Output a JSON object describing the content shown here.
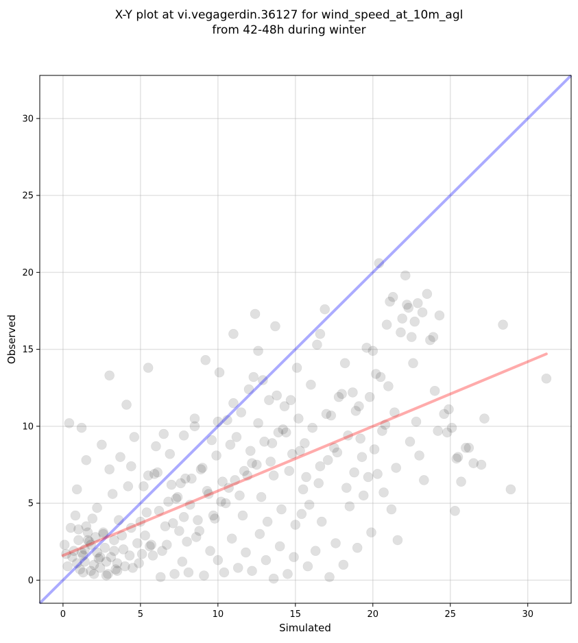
{
  "chart_data": {
    "type": "scatter",
    "title_lines": [
      "X-Y plot at vi.vegagerdin.36127 for wind_speed_at_10m_agl",
      "from 42-48h during winter"
    ],
    "xlabel": "Simulated",
    "ylabel": "Observed",
    "xlim": [
      -1.5,
      32.8
    ],
    "ylim": [
      -1.5,
      32.8
    ],
    "xticks": [
      0,
      5,
      10,
      15,
      20,
      25,
      30
    ],
    "yticks": [
      0,
      5,
      10,
      15,
      20,
      25,
      30
    ],
    "grid": true,
    "colors": {
      "points": "#000000",
      "identity_line": "#0000ff",
      "fit_line": "#ff0000"
    },
    "identity_line": {
      "x": [
        -1.5,
        32.8
      ],
      "y": [
        -1.5,
        32.8
      ]
    },
    "fit_line": {
      "x": [
        0,
        31.2
      ],
      "y": [
        1.6,
        14.7
      ]
    },
    "points": {
      "x": [
        1.1,
        1.4,
        1.3,
        2.0,
        2.4,
        3.1,
        2.7,
        1.8,
        2.2,
        3.5,
        4.0,
        1.0,
        0.8,
        1.6,
        2.9,
        3.8,
        4.3,
        5.0,
        5.6,
        6.2,
        5.9,
        6.8,
        7.1,
        7.6,
        8.2,
        8.9,
        9.4,
        9.9,
        10.3,
        10.8,
        11.2,
        11.7,
        12.1,
        12.6,
        13.0,
        13.4,
        13.9,
        14.3,
        14.8,
        15.2,
        15.7,
        16.1,
        16.6,
        17.0,
        17.5,
        18.0,
        18.4,
        18.9,
        19.3,
        19.8,
        20.2,
        20.6,
        21.0,
        21.4,
        21.9,
        22.3,
        22.7,
        23.2,
        23.7,
        24.0,
        24.6,
        25.1,
        25.4,
        26.0,
        26.5,
        27.2,
        27.0,
        28.4,
        28.9,
        31.2,
        0.1,
        0.4,
        0.6,
        0.3,
        0.5,
        0.9,
        1.2,
        1.5,
        1.9,
        2.5,
        3.0,
        3.3,
        3.7,
        4.1,
        4.6,
        5.2,
        5.5,
        6.0,
        6.5,
        7.0,
        7.4,
        7.9,
        8.5,
        9.0,
        9.6,
        10.1,
        10.6,
        11.0,
        11.5,
        12.0,
        12.4,
        12.9,
        13.3,
        13.8,
        14.2,
        14.7,
        15.1,
        15.6,
        16.0,
        16.4,
        16.9,
        17.3,
        17.8,
        18.2,
        18.7,
        19.1,
        19.6,
        20.0,
        20.5,
        20.9,
        21.3,
        21.8,
        22.2,
        22.6,
        23.0,
        23.5,
        23.9,
        24.3,
        24.8,
        25.3,
        25.7,
        26.2,
        22.1,
        22.5,
        22.9,
        21.6,
        21.2,
        20.7,
        20.3,
        19.9,
        19.4,
        19.0,
        18.5,
        18.1,
        17.6,
        17.2,
        16.7,
        16.3,
        15.8,
        15.4,
        14.9,
        14.5,
        14.0,
        13.6,
        13.1,
        12.7,
        12.2,
        11.8,
        11.3,
        10.9,
        10.4,
        10.0,
        9.5,
        9.1,
        8.6,
        8.1,
        7.7,
        7.2,
        6.7,
        6.3,
        5.8,
        5.3,
        4.9,
        4.4,
        3.9,
        3.4,
        2.8,
        2.3,
        1.7,
        1.3,
        0.7,
        0.2,
        3.0,
        4.4,
        5.5,
        9.2,
        11.0,
        12.3,
        12.6,
        13.7,
        16.6,
        10.0,
        8.5,
        7.8,
        6.9,
        2.2,
        2.6,
        3.2,
        3.6,
        4.2,
        4.8,
        5.4,
        6.1,
        6.6,
        7.3,
        7.8,
        8.3,
        8.8,
        9.3,
        9.8,
        10.5,
        11.1,
        11.6,
        12.2,
        12.8,
        13.2,
        13.6,
        14.1,
        14.6,
        15.0,
        15.5,
        15.9,
        16.5,
        17.1,
        17.7,
        18.3,
        18.8,
        19.2,
        19.7,
        20.1,
        20.8,
        21.5,
        22.4,
        23.3,
        24.2,
        24.9,
        25.5,
        20.4,
        21.1,
        22.8,
        1.0,
        1.5,
        2.1,
        2.6,
        3.3,
        1.2,
        1.8,
        2.4,
        2.0,
        1.6,
        0.9,
        1.4,
        2.8,
        3.5,
        4.5,
        5.1,
        5.7,
        6.4,
        7.5,
        8.0,
        8.7,
        9.7,
        10.2,
        10.7,
        11.4,
        11.9,
        12.5,
        13.5,
        14.4,
        15.3
      ],
      "y": [
        0.7,
        1.2,
        0.5,
        1.0,
        0.8,
        1.5,
        2.1,
        0.6,
        1.8,
        1.1,
        0.9,
        3.3,
        4.2,
        2.6,
        0.4,
        2.9,
        1.6,
        3.8,
        2.2,
        4.5,
        6.9,
        5.1,
        3.7,
        6.3,
        4.9,
        7.2,
        5.6,
        8.1,
        6.4,
        8.8,
        9.3,
        7.1,
        8.4,
        10.2,
        9.0,
        7.7,
        9.6,
        11.3,
        8.2,
        10.5,
        6.7,
        9.9,
        7.4,
        10.8,
        8.6,
        12.1,
        9.4,
        11.0,
        8.0,
        11.9,
        13.4,
        9.7,
        12.6,
        10.9,
        17.0,
        17.7,
        16.8,
        17.4,
        15.6,
        12.3,
        10.8,
        9.9,
        7.9,
        8.6,
        7.6,
        10.5,
        7.5,
        16.6,
        5.9,
        13.1,
        2.3,
        10.2,
        1.5,
        0.9,
        3.4,
        5.9,
        9.9,
        7.8,
        4.0,
        8.8,
        13.3,
        2.6,
        8.0,
        11.4,
        9.3,
        6.1,
        13.8,
        8.7,
        9.5,
        6.2,
        5.4,
        6.6,
        10.0,
        7.3,
        9.1,
        13.5,
        10.4,
        11.5,
        10.9,
        12.4,
        17.3,
        13.0,
        11.7,
        12.0,
        9.8,
        11.7,
        13.8,
        8.9,
        12.7,
        15.3,
        17.6,
        10.7,
        11.9,
        14.1,
        12.2,
        11.3,
        15.1,
        14.9,
        13.2,
        16.6,
        18.4,
        16.1,
        17.9,
        14.1,
        8.1,
        18.6,
        15.8,
        17.2,
        9.6,
        4.5,
        6.4,
        8.6,
        19.8,
        15.8,
        18.0,
        2.6,
        4.6,
        5.7,
        6.9,
        3.1,
        5.5,
        2.1,
        4.8,
        1.0,
        2.4,
        0.2,
        3.8,
        1.9,
        0.9,
        4.3,
        1.5,
        0.4,
        2.2,
        0.1,
        1.3,
        3.0,
        0.6,
        1.8,
        0.8,
        2.7,
        0.5,
        1.3,
        1.9,
        0.3,
        2.8,
        0.5,
        1.2,
        0.4,
        2.3,
        0.2,
        1.6,
        2.9,
        1.1,
        3.4,
        2.0,
        0.7,
        0.3,
        1.4,
        2.5,
        1.6,
        1.9,
        1.7,
        7.2,
        7.4,
        6.8,
        14.3,
        16.0,
        13.2,
        14.9,
        16.5,
        16.0,
        10.3,
        10.5,
        9.4,
        8.2,
        4.7,
        3.1,
        5.6,
        3.9,
        6.1,
        2.4,
        4.4,
        7.0,
        3.5,
        5.3,
        4.1,
        6.6,
        3.2,
        5.8,
        4.0,
        5.0,
        6.5,
        4.2,
        7.6,
        5.4,
        3.8,
        6.8,
        4.6,
        7.1,
        3.6,
        5.9,
        4.9,
        6.3,
        7.8,
        8.3,
        6.0,
        7.0,
        9.2,
        6.7,
        8.5,
        10.1,
        7.3,
        9.0,
        6.5,
        9.7,
        11.1,
        8.0,
        20.6,
        18.1,
        10.3,
        2.6,
        3.5,
        2.8,
        3.0,
        1.9,
        1.8,
        2.3,
        1.5,
        0.4,
        3.1,
        1.1,
        2.0,
        1.2,
        0.6,
        0.8,
        1.7,
        2.3,
        1.9,
        3.2,
        2.5,
        3.9,
        4.2,
        5.1,
        6.0,
        5.5,
        6.8,
        7.5,
        8.9,
        9.6,
        8.4
      ]
    }
  }
}
